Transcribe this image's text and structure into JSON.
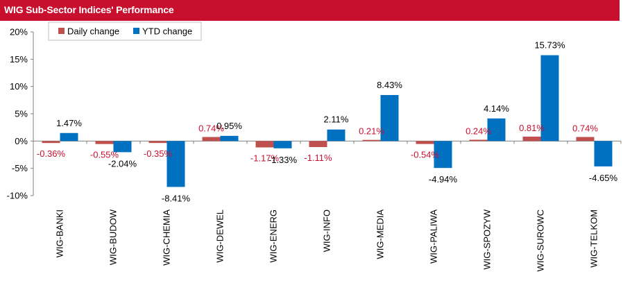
{
  "header": {
    "title": "WIG Sub-Sector Indices' Performance"
  },
  "chart_data": {
    "type": "bar",
    "title": "",
    "xlabel": "",
    "ylabel": "",
    "categories": [
      "WIG-BANKI",
      "WIG-BUDOW",
      "WIG-CHEMIA",
      "WIG-DEWEL",
      "WIG-ENERG",
      "WIG-INFO",
      "WIG-MEDIA",
      "WIG-PALIWA",
      "WIG-SPOZYW",
      "WIG-SUROWC",
      "WIG-TELKOM"
    ],
    "series": [
      {
        "name": "Daily change",
        "color": "#c0504d",
        "label_color": "#c8102e",
        "values": [
          -0.36,
          -0.55,
          -0.35,
          0.74,
          -1.17,
          -1.11,
          0.21,
          -0.54,
          0.24,
          0.81,
          0.74
        ],
        "labels": [
          "-0.36%",
          "-0.55%",
          "-0.35%",
          "0.74%",
          "-1.17%",
          "-1.11%",
          "0.21%",
          "-0.54%",
          "0.24%",
          "0.81%",
          "0.74%"
        ]
      },
      {
        "name": "YTD change",
        "color": "#0070c0",
        "label_color": "#000000",
        "values": [
          1.47,
          -2.04,
          -8.41,
          0.95,
          -1.33,
          2.11,
          8.43,
          -4.94,
          4.14,
          15.73,
          -4.65
        ],
        "labels": [
          "1.47%",
          "-2.04%",
          "-8.41%",
          "0.95%",
          "-1.33%",
          "2.11%",
          "8.43%",
          "-4.94%",
          "4.14%",
          "15.73%",
          "-4.65%"
        ]
      }
    ],
    "ylim": [
      -10,
      20
    ],
    "yticks": [
      -10,
      -5,
      0,
      5,
      10,
      15,
      20
    ],
    "ytick_labels": [
      "-10%",
      "-5%",
      "0%",
      "5%",
      "10%",
      "15%",
      "20%"
    ],
    "legend": {
      "placement": "top-left",
      "items": [
        "Daily change",
        "YTD change"
      ]
    },
    "grid": false
  }
}
